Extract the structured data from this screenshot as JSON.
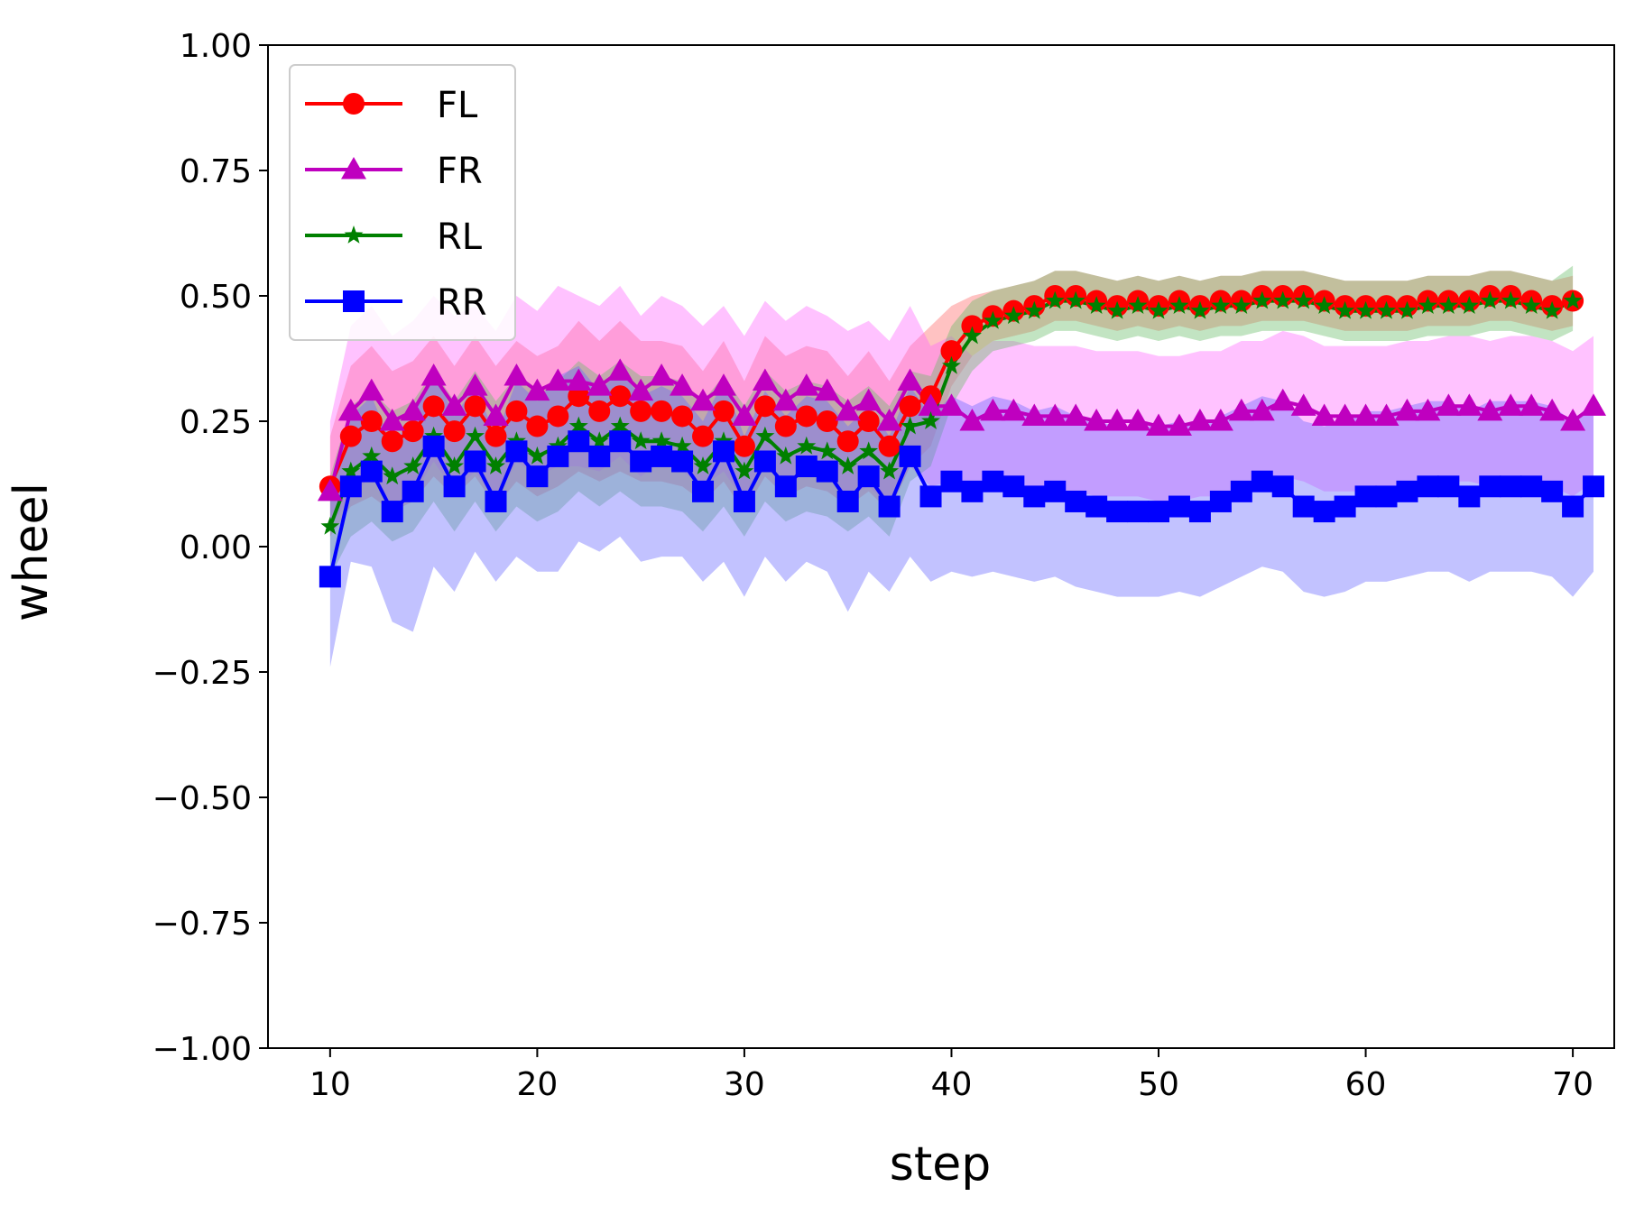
{
  "chart_data": {
    "type": "line",
    "xlabel": "step",
    "ylabel": "wheel",
    "xlim": [
      7,
      72
    ],
    "ylim": [
      -1.0,
      1.0
    ],
    "xticks": [
      10,
      20,
      30,
      40,
      50,
      60,
      70
    ],
    "yticks": [
      -1.0,
      -0.75,
      -0.5,
      -0.25,
      0.0,
      0.25,
      0.5,
      0.75,
      1.0
    ],
    "ytick_labels": [
      "−1.00",
      "−0.75",
      "−0.50",
      "−0.25",
      "0.00",
      "0.25",
      "0.50",
      "0.75",
      "1.00"
    ],
    "xtick_labels": [
      "10",
      "20",
      "30",
      "40",
      "50",
      "60",
      "70"
    ],
    "grid": false,
    "legend_position": "top-left",
    "x_start": 10,
    "series": [
      {
        "name": "FL",
        "color": "#ff0000",
        "band_color": "#ff6666",
        "marker": "circle",
        "values": [
          0.12,
          0.22,
          0.25,
          0.21,
          0.23,
          0.28,
          0.23,
          0.28,
          0.22,
          0.27,
          0.24,
          0.26,
          0.3,
          0.27,
          0.3,
          0.27,
          0.27,
          0.26,
          0.22,
          0.27,
          0.2,
          0.28,
          0.24,
          0.26,
          0.25,
          0.21,
          0.25,
          0.2,
          0.28,
          0.3,
          0.39,
          0.44,
          0.46,
          0.47,
          0.48,
          0.5,
          0.5,
          0.49,
          0.48,
          0.49,
          0.48,
          0.49,
          0.48,
          0.49,
          0.49,
          0.5,
          0.5,
          0.5,
          0.49,
          0.48,
          0.48,
          0.48,
          0.48,
          0.49,
          0.49,
          0.49,
          0.5,
          0.5,
          0.49,
          0.48,
          0.49
        ],
        "lower": [
          0.02,
          0.08,
          0.1,
          0.07,
          0.09,
          0.14,
          0.1,
          0.14,
          0.08,
          0.13,
          0.1,
          0.12,
          0.15,
          0.13,
          0.15,
          0.13,
          0.13,
          0.12,
          0.09,
          0.13,
          0.07,
          0.14,
          0.1,
          0.12,
          0.11,
          0.08,
          0.11,
          0.07,
          0.16,
          0.2,
          0.32,
          0.38,
          0.41,
          0.42,
          0.43,
          0.45,
          0.45,
          0.44,
          0.43,
          0.44,
          0.43,
          0.44,
          0.43,
          0.44,
          0.44,
          0.45,
          0.45,
          0.45,
          0.44,
          0.43,
          0.43,
          0.43,
          0.43,
          0.44,
          0.44,
          0.44,
          0.45,
          0.45,
          0.44,
          0.43,
          0.44
        ],
        "upper": [
          0.22,
          0.36,
          0.4,
          0.35,
          0.37,
          0.42,
          0.36,
          0.42,
          0.36,
          0.41,
          0.38,
          0.4,
          0.45,
          0.41,
          0.45,
          0.41,
          0.41,
          0.4,
          0.35,
          0.41,
          0.33,
          0.42,
          0.38,
          0.4,
          0.39,
          0.34,
          0.39,
          0.33,
          0.4,
          0.44,
          0.48,
          0.5,
          0.51,
          0.52,
          0.53,
          0.55,
          0.55,
          0.54,
          0.53,
          0.54,
          0.53,
          0.54,
          0.53,
          0.54,
          0.54,
          0.55,
          0.55,
          0.55,
          0.54,
          0.53,
          0.53,
          0.53,
          0.53,
          0.54,
          0.54,
          0.54,
          0.55,
          0.55,
          0.54,
          0.53,
          0.54
        ]
      },
      {
        "name": "FR",
        "color": "#bf00bf",
        "band_color": "#ff66ff",
        "marker": "triangle",
        "values": [
          0.11,
          0.27,
          0.31,
          0.25,
          0.27,
          0.34,
          0.28,
          0.32,
          0.26,
          0.34,
          0.31,
          0.33,
          0.33,
          0.32,
          0.35,
          0.31,
          0.34,
          0.32,
          0.29,
          0.32,
          0.26,
          0.33,
          0.29,
          0.32,
          0.31,
          0.27,
          0.29,
          0.25,
          0.33,
          0.28,
          0.28,
          0.25,
          0.27,
          0.27,
          0.26,
          0.26,
          0.26,
          0.25,
          0.25,
          0.25,
          0.24,
          0.24,
          0.25,
          0.25,
          0.27,
          0.27,
          0.29,
          0.28,
          0.26,
          0.26,
          0.26,
          0.26,
          0.27,
          0.27,
          0.28,
          0.28,
          0.27,
          0.28,
          0.28,
          0.27,
          0.25,
          0.28
        ],
        "lower": [
          0.04,
          0.1,
          0.14,
          0.08,
          0.1,
          0.17,
          0.11,
          0.15,
          0.09,
          0.17,
          0.14,
          0.16,
          0.16,
          0.15,
          0.18,
          0.14,
          0.17,
          0.15,
          0.12,
          0.15,
          0.09,
          0.16,
          0.12,
          0.15,
          0.14,
          0.1,
          0.12,
          0.08,
          0.16,
          0.12,
          0.13,
          0.1,
          0.12,
          0.12,
          0.11,
          0.11,
          0.11,
          0.1,
          0.1,
          0.1,
          0.09,
          0.09,
          0.1,
          0.1,
          0.12,
          0.12,
          0.14,
          0.13,
          0.11,
          0.11,
          0.11,
          0.11,
          0.12,
          0.12,
          0.13,
          0.13,
          0.12,
          0.13,
          0.13,
          0.12,
          0.1,
          0.13
        ],
        "upper": [
          0.25,
          0.44,
          0.48,
          0.42,
          0.45,
          0.5,
          0.46,
          0.48,
          0.43,
          0.5,
          0.47,
          0.52,
          0.5,
          0.48,
          0.52,
          0.46,
          0.5,
          0.48,
          0.44,
          0.48,
          0.42,
          0.49,
          0.45,
          0.48,
          0.46,
          0.43,
          0.45,
          0.41,
          0.48,
          0.4,
          0.42,
          0.38,
          0.41,
          0.41,
          0.4,
          0.4,
          0.4,
          0.39,
          0.39,
          0.39,
          0.38,
          0.38,
          0.39,
          0.39,
          0.41,
          0.41,
          0.43,
          0.42,
          0.4,
          0.4,
          0.4,
          0.4,
          0.41,
          0.41,
          0.42,
          0.42,
          0.41,
          0.42,
          0.42,
          0.41,
          0.39,
          0.42
        ]
      },
      {
        "name": "RL",
        "color": "#008000",
        "band_color": "#66bb66",
        "marker": "star",
        "values": [
          0.04,
          0.15,
          0.18,
          0.14,
          0.16,
          0.22,
          0.16,
          0.22,
          0.16,
          0.21,
          0.18,
          0.2,
          0.24,
          0.21,
          0.24,
          0.21,
          0.21,
          0.2,
          0.16,
          0.21,
          0.15,
          0.22,
          0.18,
          0.2,
          0.19,
          0.16,
          0.19,
          0.15,
          0.24,
          0.25,
          0.36,
          0.42,
          0.45,
          0.46,
          0.47,
          0.49,
          0.49,
          0.48,
          0.47,
          0.48,
          0.47,
          0.48,
          0.47,
          0.48,
          0.48,
          0.49,
          0.49,
          0.49,
          0.48,
          0.47,
          0.47,
          0.47,
          0.47,
          0.48,
          0.48,
          0.48,
          0.49,
          0.49,
          0.48,
          0.47,
          0.49
        ],
        "lower": [
          -0.06,
          0.02,
          0.05,
          0.01,
          0.03,
          0.09,
          0.03,
          0.09,
          0.03,
          0.08,
          0.05,
          0.07,
          0.11,
          0.08,
          0.11,
          0.08,
          0.08,
          0.07,
          0.03,
          0.08,
          0.02,
          0.09,
          0.05,
          0.07,
          0.06,
          0.03,
          0.06,
          0.02,
          0.13,
          0.16,
          0.28,
          0.35,
          0.39,
          0.4,
          0.41,
          0.43,
          0.43,
          0.42,
          0.41,
          0.42,
          0.41,
          0.42,
          0.41,
          0.42,
          0.42,
          0.43,
          0.43,
          0.43,
          0.42,
          0.41,
          0.41,
          0.41,
          0.41,
          0.42,
          0.42,
          0.42,
          0.43,
          0.43,
          0.42,
          0.41,
          0.43
        ],
        "upper": [
          0.14,
          0.28,
          0.31,
          0.27,
          0.29,
          0.35,
          0.29,
          0.35,
          0.29,
          0.34,
          0.31,
          0.33,
          0.37,
          0.34,
          0.37,
          0.34,
          0.34,
          0.33,
          0.29,
          0.34,
          0.28,
          0.35,
          0.31,
          0.33,
          0.32,
          0.29,
          0.32,
          0.28,
          0.35,
          0.34,
          0.44,
          0.49,
          0.51,
          0.52,
          0.53,
          0.55,
          0.55,
          0.54,
          0.53,
          0.54,
          0.53,
          0.54,
          0.53,
          0.54,
          0.54,
          0.55,
          0.55,
          0.55,
          0.54,
          0.53,
          0.53,
          0.53,
          0.53,
          0.54,
          0.54,
          0.54,
          0.55,
          0.55,
          0.54,
          0.53,
          0.56
        ]
      },
      {
        "name": "RR",
        "color": "#0000ff",
        "band_color": "#6666ff",
        "marker": "square",
        "values": [
          -0.06,
          0.12,
          0.15,
          0.07,
          0.11,
          0.2,
          0.12,
          0.17,
          0.09,
          0.19,
          0.14,
          0.18,
          0.21,
          0.18,
          0.21,
          0.17,
          0.18,
          0.17,
          0.11,
          0.19,
          0.09,
          0.17,
          0.12,
          0.16,
          0.15,
          0.09,
          0.14,
          0.08,
          0.18,
          0.1,
          0.13,
          0.11,
          0.13,
          0.12,
          0.1,
          0.11,
          0.09,
          0.08,
          0.07,
          0.07,
          0.07,
          0.08,
          0.07,
          0.09,
          0.11,
          0.13,
          0.12,
          0.08,
          0.07,
          0.08,
          0.1,
          0.1,
          0.11,
          0.12,
          0.12,
          0.1,
          0.12,
          0.12,
          0.12,
          0.11,
          0.08,
          0.12
        ],
        "lower": [
          -0.24,
          -0.03,
          -0.04,
          -0.15,
          -0.17,
          -0.04,
          -0.09,
          -0.01,
          -0.07,
          -0.02,
          -0.05,
          -0.05,
          0.01,
          -0.01,
          0.02,
          -0.03,
          -0.02,
          -0.02,
          -0.07,
          -0.03,
          -0.1,
          -0.02,
          -0.07,
          -0.03,
          -0.05,
          -0.13,
          -0.05,
          -0.09,
          -0.02,
          -0.07,
          -0.05,
          -0.06,
          -0.05,
          -0.06,
          -0.07,
          -0.06,
          -0.08,
          -0.09,
          -0.1,
          -0.1,
          -0.1,
          -0.09,
          -0.1,
          -0.08,
          -0.06,
          -0.04,
          -0.05,
          -0.09,
          -0.1,
          -0.09,
          -0.07,
          -0.07,
          -0.06,
          -0.05,
          -0.05,
          -0.07,
          -0.05,
          -0.05,
          -0.05,
          -0.06,
          -0.1,
          -0.05
        ],
        "upper": [
          0.12,
          0.26,
          0.3,
          0.2,
          0.26,
          0.35,
          0.26,
          0.32,
          0.22,
          0.33,
          0.29,
          0.34,
          0.36,
          0.31,
          0.35,
          0.3,
          0.32,
          0.3,
          0.25,
          0.33,
          0.22,
          0.31,
          0.26,
          0.3,
          0.29,
          0.24,
          0.28,
          0.22,
          0.32,
          0.26,
          0.3,
          0.28,
          0.3,
          0.29,
          0.27,
          0.28,
          0.26,
          0.25,
          0.24,
          0.24,
          0.24,
          0.25,
          0.24,
          0.26,
          0.28,
          0.3,
          0.29,
          0.25,
          0.24,
          0.25,
          0.27,
          0.27,
          0.28,
          0.29,
          0.29,
          0.27,
          0.29,
          0.29,
          0.29,
          0.28,
          0.25,
          0.29
        ]
      }
    ]
  }
}
